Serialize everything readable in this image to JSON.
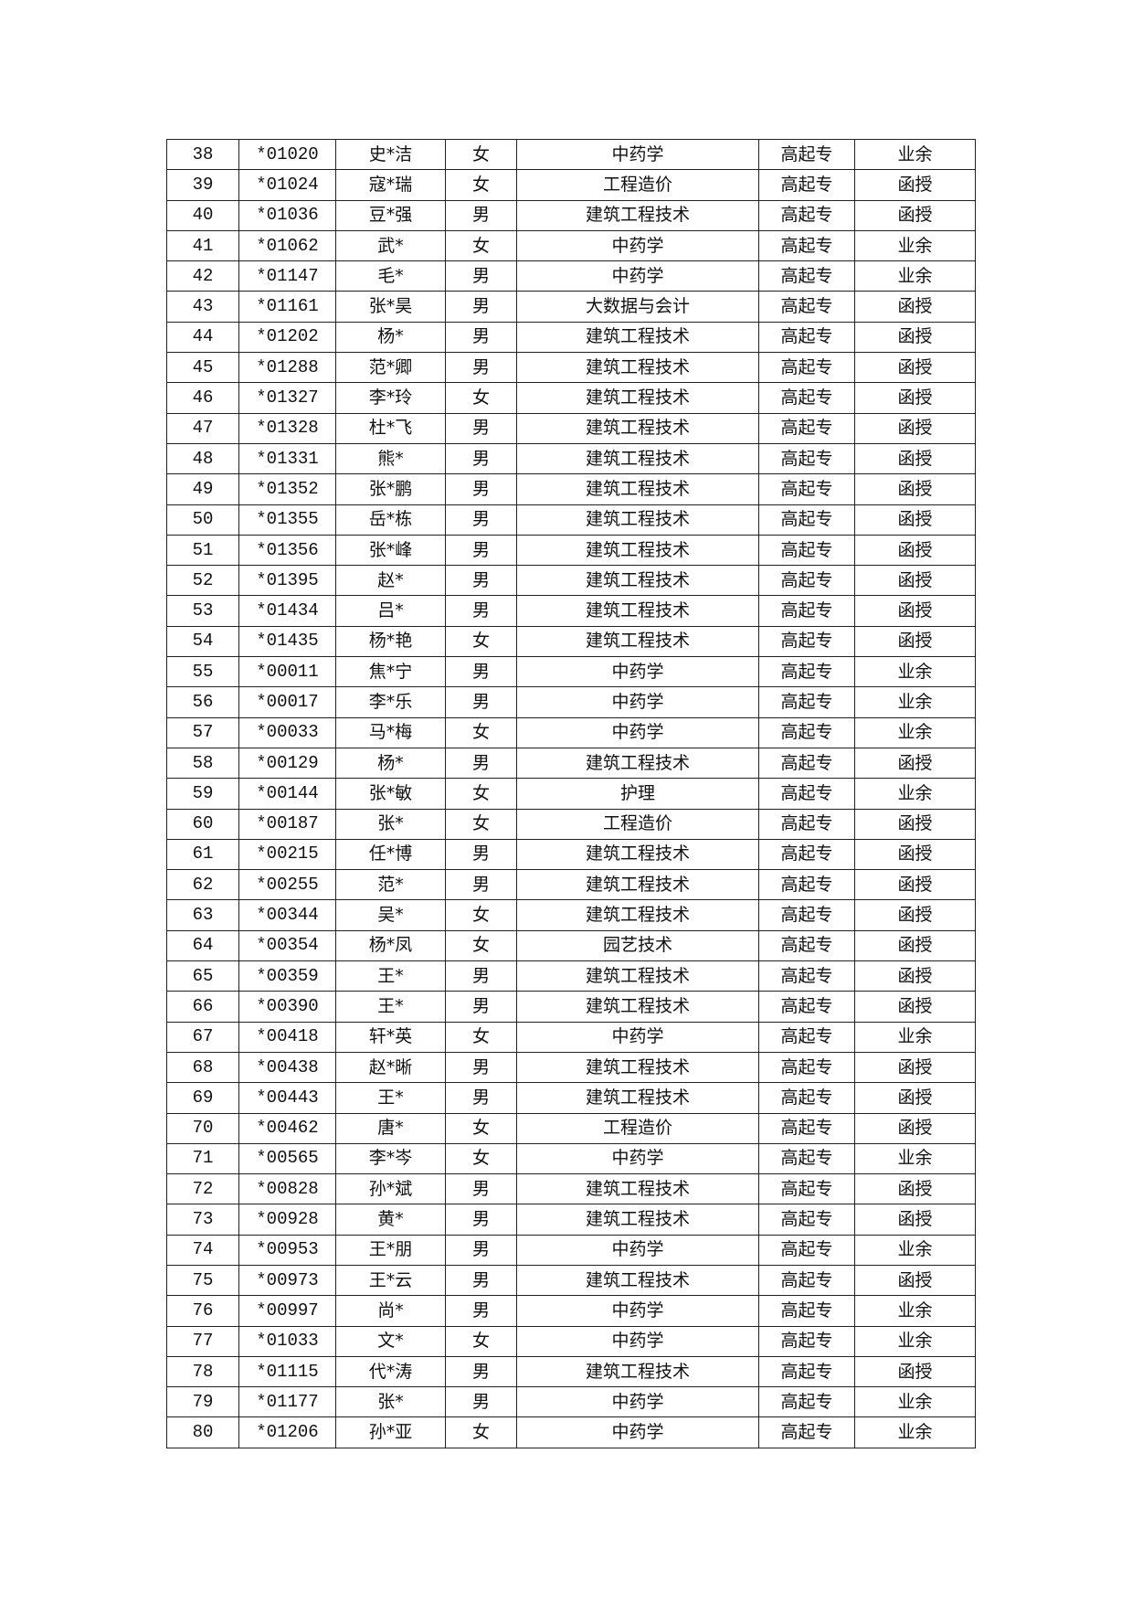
{
  "rows": [
    [
      "38",
      "*01020",
      "史*洁",
      "女",
      "中药学",
      "高起专",
      "业余"
    ],
    [
      "39",
      "*01024",
      "寇*瑞",
      "女",
      "工程造价",
      "高起专",
      "函授"
    ],
    [
      "40",
      "*01036",
      "豆*强",
      "男",
      "建筑工程技术",
      "高起专",
      "函授"
    ],
    [
      "41",
      "*01062",
      "武*",
      "女",
      "中药学",
      "高起专",
      "业余"
    ],
    [
      "42",
      "*01147",
      "毛*",
      "男",
      "中药学",
      "高起专",
      "业余"
    ],
    [
      "43",
      "*01161",
      "张*昊",
      "男",
      "大数据与会计",
      "高起专",
      "函授"
    ],
    [
      "44",
      "*01202",
      "杨*",
      "男",
      "建筑工程技术",
      "高起专",
      "函授"
    ],
    [
      "45",
      "*01288",
      "范*卿",
      "男",
      "建筑工程技术",
      "高起专",
      "函授"
    ],
    [
      "46",
      "*01327",
      "李*玲",
      "女",
      "建筑工程技术",
      "高起专",
      "函授"
    ],
    [
      "47",
      "*01328",
      "杜*飞",
      "男",
      "建筑工程技术",
      "高起专",
      "函授"
    ],
    [
      "48",
      "*01331",
      "熊*",
      "男",
      "建筑工程技术",
      "高起专",
      "函授"
    ],
    [
      "49",
      "*01352",
      "张*鹏",
      "男",
      "建筑工程技术",
      "高起专",
      "函授"
    ],
    [
      "50",
      "*01355",
      "岳*栋",
      "男",
      "建筑工程技术",
      "高起专",
      "函授"
    ],
    [
      "51",
      "*01356",
      "张*峰",
      "男",
      "建筑工程技术",
      "高起专",
      "函授"
    ],
    [
      "52",
      "*01395",
      "赵*",
      "男",
      "建筑工程技术",
      "高起专",
      "函授"
    ],
    [
      "53",
      "*01434",
      "吕*",
      "男",
      "建筑工程技术",
      "高起专",
      "函授"
    ],
    [
      "54",
      "*01435",
      "杨*艳",
      "女",
      "建筑工程技术",
      "高起专",
      "函授"
    ],
    [
      "55",
      "*00011",
      "焦*宁",
      "男",
      "中药学",
      "高起专",
      "业余"
    ],
    [
      "56",
      "*00017",
      "李*乐",
      "男",
      "中药学",
      "高起专",
      "业余"
    ],
    [
      "57",
      "*00033",
      "马*梅",
      "女",
      "中药学",
      "高起专",
      "业余"
    ],
    [
      "58",
      "*00129",
      "杨*",
      "男",
      "建筑工程技术",
      "高起专",
      "函授"
    ],
    [
      "59",
      "*00144",
      "张*敏",
      "女",
      "护理",
      "高起专",
      "业余"
    ],
    [
      "60",
      "*00187",
      "张*",
      "女",
      "工程造价",
      "高起专",
      "函授"
    ],
    [
      "61",
      "*00215",
      "任*博",
      "男",
      "建筑工程技术",
      "高起专",
      "函授"
    ],
    [
      "62",
      "*00255",
      "范*",
      "男",
      "建筑工程技术",
      "高起专",
      "函授"
    ],
    [
      "63",
      "*00344",
      "吴*",
      "女",
      "建筑工程技术",
      "高起专",
      "函授"
    ],
    [
      "64",
      "*00354",
      "杨*凤",
      "女",
      "园艺技术",
      "高起专",
      "函授"
    ],
    [
      "65",
      "*00359",
      "王*",
      "男",
      "建筑工程技术",
      "高起专",
      "函授"
    ],
    [
      "66",
      "*00390",
      "王*",
      "男",
      "建筑工程技术",
      "高起专",
      "函授"
    ],
    [
      "67",
      "*00418",
      "轩*英",
      "女",
      "中药学",
      "高起专",
      "业余"
    ],
    [
      "68",
      "*00438",
      "赵*晰",
      "男",
      "建筑工程技术",
      "高起专",
      "函授"
    ],
    [
      "69",
      "*00443",
      "王*",
      "男",
      "建筑工程技术",
      "高起专",
      "函授"
    ],
    [
      "70",
      "*00462",
      "唐*",
      "女",
      "工程造价",
      "高起专",
      "函授"
    ],
    [
      "71",
      "*00565",
      "李*岑",
      "女",
      "中药学",
      "高起专",
      "业余"
    ],
    [
      "72",
      "*00828",
      "孙*斌",
      "男",
      "建筑工程技术",
      "高起专",
      "函授"
    ],
    [
      "73",
      "*00928",
      "黄*",
      "男",
      "建筑工程技术",
      "高起专",
      "函授"
    ],
    [
      "74",
      "*00953",
      "王*朋",
      "男",
      "中药学",
      "高起专",
      "业余"
    ],
    [
      "75",
      "*00973",
      "王*云",
      "男",
      "建筑工程技术",
      "高起专",
      "函授"
    ],
    [
      "76",
      "*00997",
      "尚*",
      "男",
      "中药学",
      "高起专",
      "业余"
    ],
    [
      "77",
      "*01033",
      "文*",
      "女",
      "中药学",
      "高起专",
      "业余"
    ],
    [
      "78",
      "*01115",
      "代*涛",
      "男",
      "建筑工程技术",
      "高起专",
      "函授"
    ],
    [
      "79",
      "*01177",
      "张*",
      "男",
      "中药学",
      "高起专",
      "业余"
    ],
    [
      "80",
      "*01206",
      "孙*亚",
      "女",
      "中药学",
      "高起专",
      "业余"
    ]
  ]
}
